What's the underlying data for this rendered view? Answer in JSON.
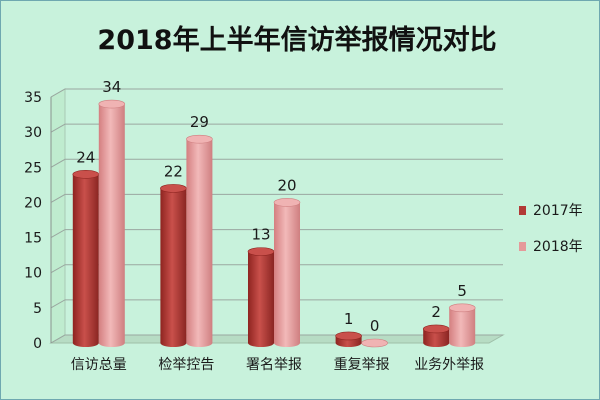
{
  "chart_data": {
    "type": "bar",
    "title": "2018年上半年信访举报情况对比",
    "categories": [
      "信访总量",
      "检举控告",
      "署名举报",
      "重复举报",
      "业务外举报"
    ],
    "series": [
      {
        "name": "2017年",
        "values": [
          24,
          22,
          13,
          1,
          2
        ],
        "color": "#b23a36"
      },
      {
        "name": "2018年",
        "values": [
          34,
          29,
          20,
          0,
          5
        ],
        "color": "#e59a9a"
      }
    ],
    "ylim": [
      0,
      35
    ],
    "yticks": [
      0,
      5,
      10,
      15,
      20,
      25,
      30,
      35
    ],
    "grid": true,
    "legend_position": "right"
  }
}
